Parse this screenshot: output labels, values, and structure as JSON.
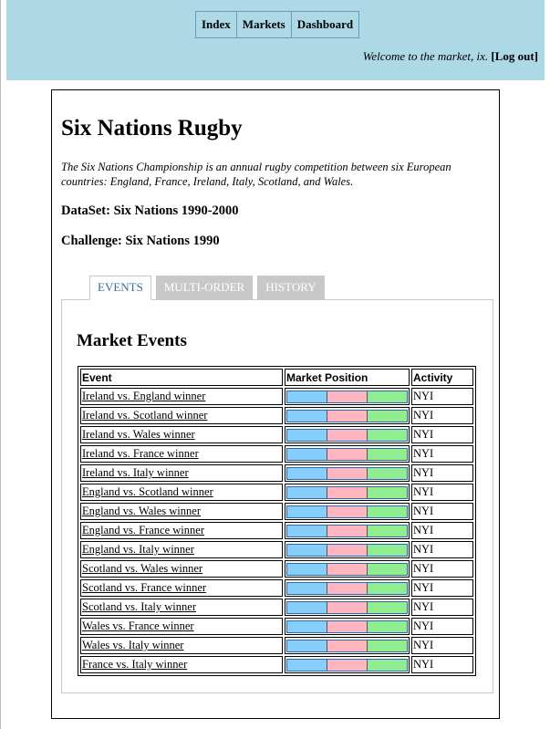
{
  "nav": {
    "items": [
      "Index",
      "Markets",
      "Dashboard"
    ]
  },
  "welcome": {
    "message": "Welcome to the market, ix.",
    "logout": "[Log out]"
  },
  "page": {
    "title": "Six Nations Rugby",
    "description": "The Six Nations Championship is an annual rugby competition between six European countries: England, France, Ireland, Italy, Scotland, and Wales.",
    "dataset": "DataSet: Six Nations 1990-2000",
    "challenge": "Challenge: Six Nations 1990"
  },
  "tabs": [
    "EVENTS",
    "MULTI-ORDER",
    "HISTORY"
  ],
  "active_tab": "EVENTS",
  "market": {
    "heading": "Market Events",
    "columns": [
      "Event",
      "Market Position",
      "Activity"
    ],
    "position_colors": [
      "#87cefa",
      "#ffb6c1",
      "#90ee90"
    ],
    "rows": [
      {
        "event": "Ireland vs. England winner",
        "activity": "NYI"
      },
      {
        "event": "Ireland vs. Scotland winner",
        "activity": "NYI"
      },
      {
        "event": "Ireland vs. Wales winner",
        "activity": "NYI"
      },
      {
        "event": "Ireland vs. France winner",
        "activity": "NYI"
      },
      {
        "event": "Ireland vs. Italy winner",
        "activity": "NYI"
      },
      {
        "event": "England vs. Scotland winner",
        "activity": "NYI"
      },
      {
        "event": "England vs. Wales winner",
        "activity": "NYI"
      },
      {
        "event": "England vs. France winner",
        "activity": "NYI"
      },
      {
        "event": "England vs. Italy winner",
        "activity": "NYI"
      },
      {
        "event": "Scotland vs. Wales winner",
        "activity": "NYI"
      },
      {
        "event": "Scotland vs. France winner",
        "activity": "NYI"
      },
      {
        "event": "Scotland vs. Italy winner",
        "activity": "NYI"
      },
      {
        "event": "Wales vs. France winner",
        "activity": "NYI"
      },
      {
        "event": "Wales vs. Italy winner",
        "activity": "NYI"
      },
      {
        "event": "France vs. Italy winner",
        "activity": "NYI"
      }
    ]
  }
}
